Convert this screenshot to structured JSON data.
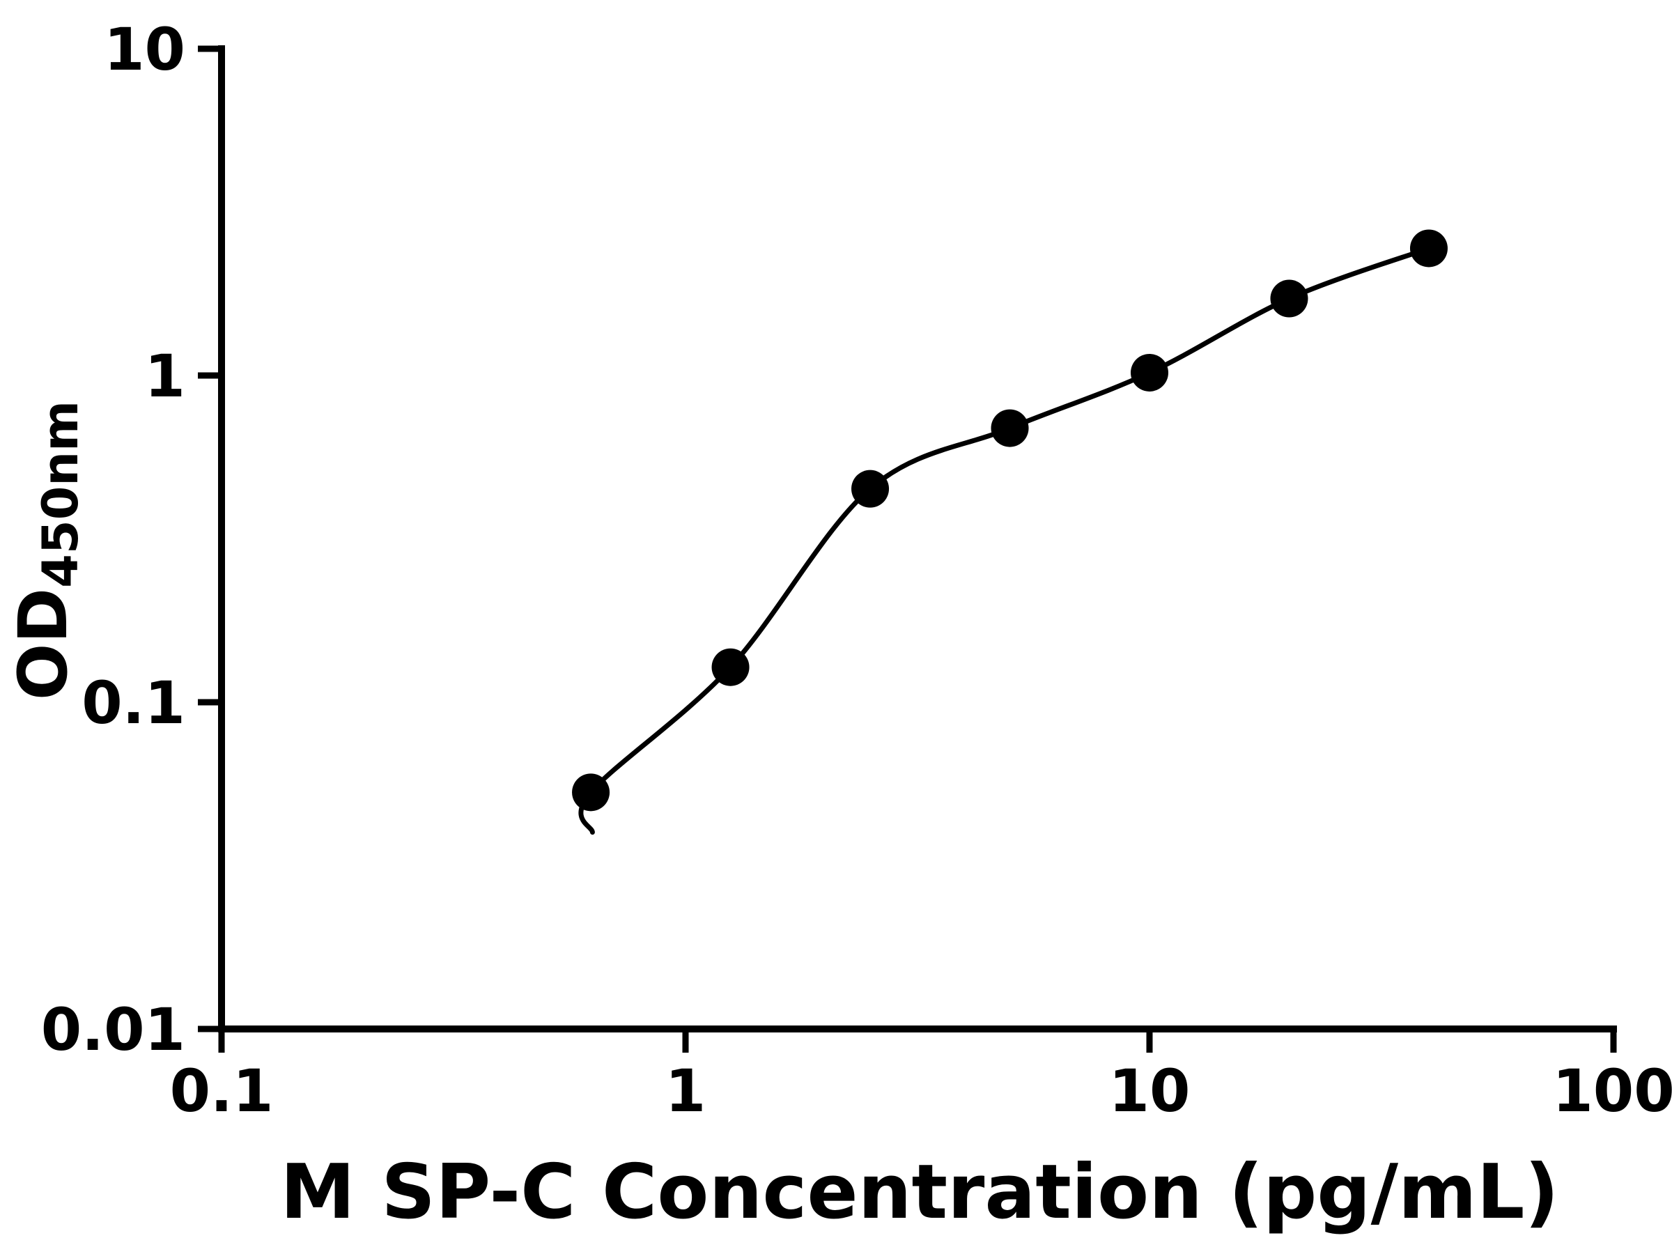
{
  "chart_data": {
    "type": "scatter",
    "title": "",
    "xlabel": "M SP-C Concentration (pg/mL)",
    "ylabel": "OD",
    "ylabel_sub": "450nm",
    "x_scale": "log",
    "y_scale": "log",
    "xlim": [
      0.1,
      100
    ],
    "ylim": [
      0.01,
      10
    ],
    "x_ticks": [
      0.1,
      1,
      10,
      100
    ],
    "x_tick_labels": [
      "0.1",
      "1",
      "10",
      "100"
    ],
    "y_ticks": [
      0.01,
      0.1,
      1,
      10
    ],
    "y_tick_labels": [
      "0.01",
      "0.1",
      "1",
      "10"
    ],
    "grid": false,
    "legend": null,
    "marker_color": "#000000",
    "line_color": "#000000",
    "axis_color": "#000000",
    "points": [
      {
        "x": 0.625,
        "y": 0.053
      },
      {
        "x": 1.25,
        "y": 0.128
      },
      {
        "x": 2.5,
        "y": 0.45
      },
      {
        "x": 5,
        "y": 0.69
      },
      {
        "x": 10,
        "y": 1.02
      },
      {
        "x": 20,
        "y": 1.72
      },
      {
        "x": 40,
        "y": 2.45
      }
    ],
    "curve_tail_start": {
      "x": 0.63,
      "y": 0.04
    }
  }
}
